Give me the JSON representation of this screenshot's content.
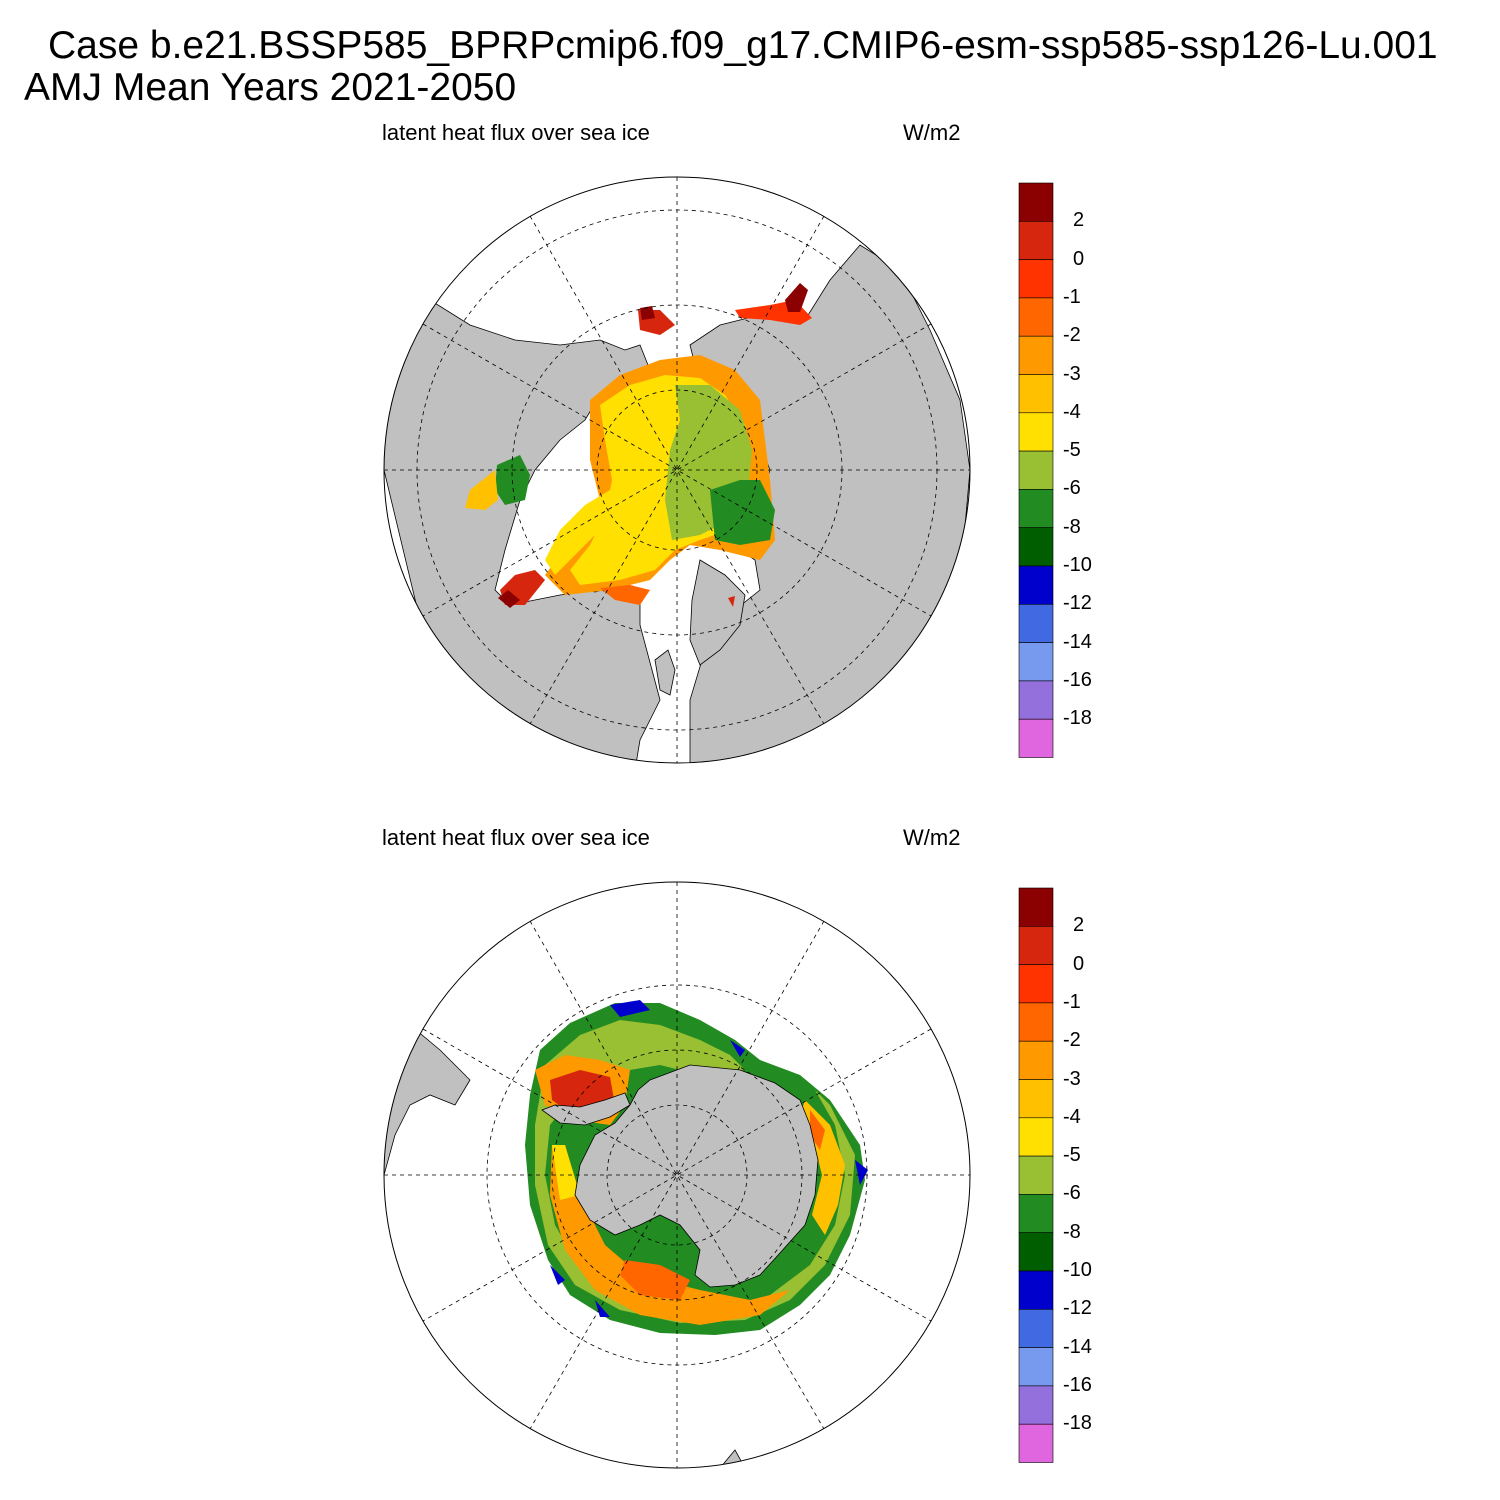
{
  "title": {
    "line1": "Case b.e21.BSSP585_BPRPcmip6.f09_g17.CMIP6-esm-ssp585-ssp126-Lu.001",
    "line2": "AMJ Mean   Years 2021-2050"
  },
  "panels": [
    {
      "id": "north",
      "variable": "latent heat flux over sea ice",
      "units": "W/m2",
      "hemisphere": "Northern"
    },
    {
      "id": "south",
      "variable": "latent heat flux over sea ice",
      "units": "W/m2",
      "hemisphere": "Southern"
    }
  ],
  "colorbar": {
    "labels": [
      "2",
      "0",
      "-1",
      "-2",
      "-3",
      "-4",
      "-5",
      "-6",
      "-8",
      "-10",
      "-12",
      "-14",
      "-16",
      "-18"
    ],
    "colors": [
      "#8b0000",
      "#d7260e",
      "#ff3300",
      "#ff6600",
      "#ff9900",
      "#ffc000",
      "#ffe000",
      "#99bf33",
      "#228b22",
      "#005e00",
      "#0000cc",
      "#4169e1",
      "#7799ee",
      "#9370db",
      "#e066e0"
    ]
  },
  "colors": {
    "land": "#c0c0c0",
    "ocean": "#ffffff"
  }
}
